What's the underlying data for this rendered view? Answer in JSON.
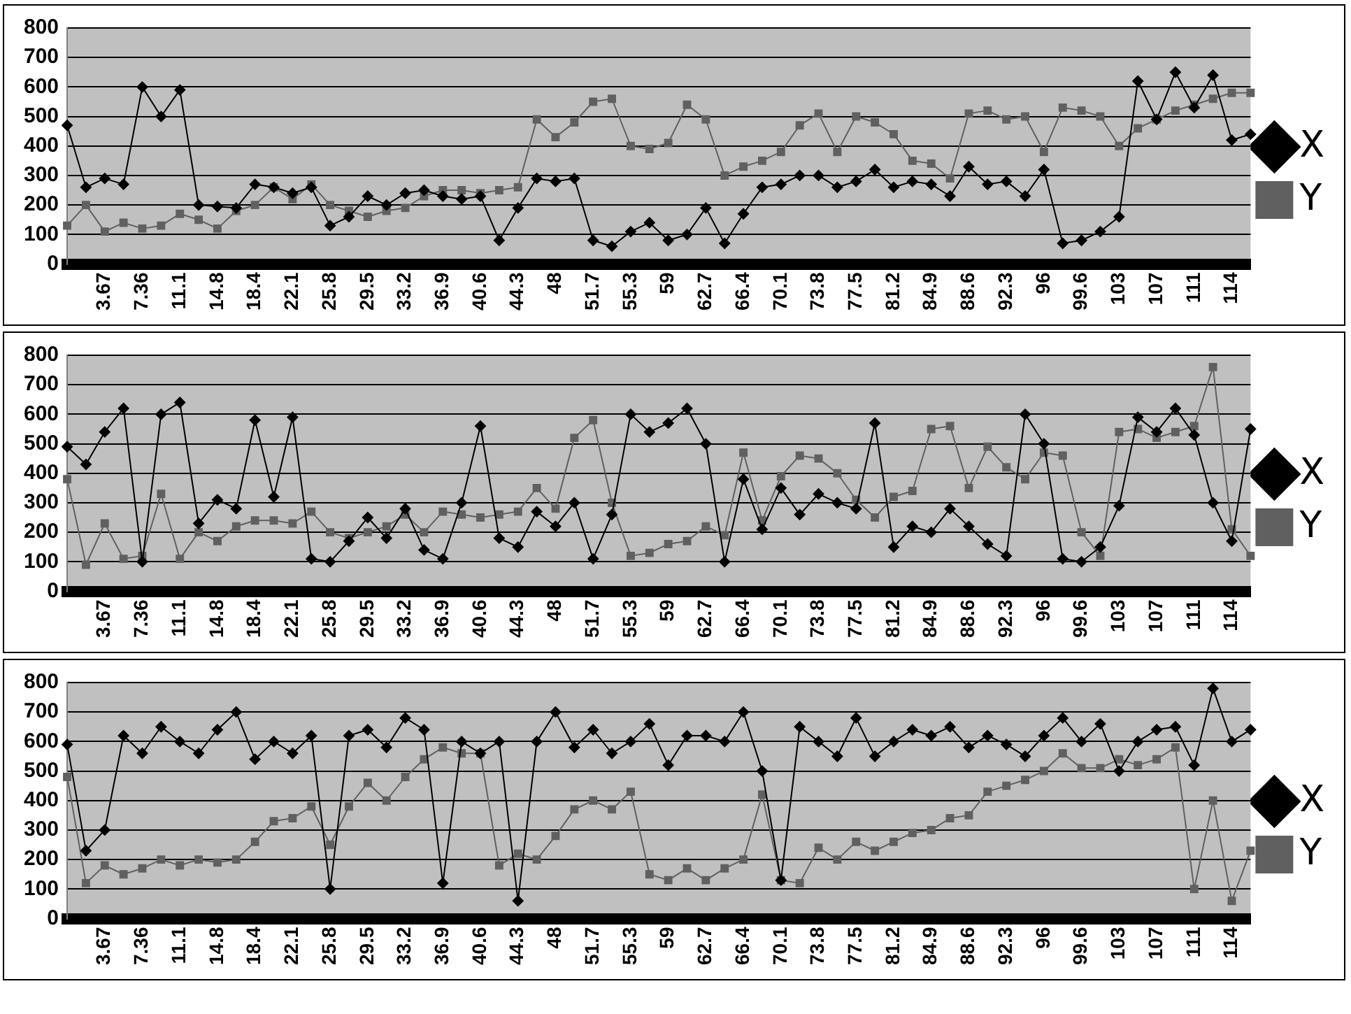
{
  "chart_data": [
    {
      "type": "line",
      "categories": [
        null,
        null,
        "3.67",
        null,
        "7.36",
        null,
        "11.1",
        null,
        "14.8",
        null,
        "18.4",
        null,
        "22.1",
        null,
        "25.8",
        null,
        "29.5",
        null,
        "33.2",
        null,
        "36.9",
        null,
        "40.6",
        null,
        "44.3",
        null,
        "48",
        null,
        "51.7",
        null,
        "55.3",
        null,
        "59",
        null,
        "62.7",
        null,
        "66.4",
        null,
        "70.1",
        null,
        "73.8",
        null,
        "77.5",
        null,
        "81.2",
        null,
        "84.9",
        null,
        "88.6",
        null,
        "92.3",
        null,
        "96",
        null,
        "99.6",
        null,
        "103",
        null,
        "107",
        null,
        "111",
        null,
        "114",
        null
      ],
      "series": [
        {
          "name": "X",
          "color": "#000000",
          "marker": "diamond",
          "values": [
            470,
            260,
            290,
            270,
            600,
            500,
            590,
            200,
            195,
            190,
            270,
            260,
            240,
            260,
            130,
            160,
            230,
            200,
            240,
            250,
            230,
            220,
            230,
            80,
            190,
            290,
            280,
            290,
            80,
            60,
            110,
            140,
            80,
            100,
            190,
            70,
            170,
            260,
            270,
            300,
            300,
            260,
            280,
            320,
            260,
            280,
            270,
            230,
            330,
            270,
            280,
            230,
            320,
            70,
            80,
            110,
            160,
            620,
            490,
            650,
            530,
            640,
            420,
            440
          ]
        },
        {
          "name": "Y",
          "color": "#606060",
          "marker": "square",
          "values": [
            130,
            200,
            110,
            140,
            120,
            130,
            170,
            150,
            120,
            180,
            200,
            260,
            220,
            270,
            200,
            180,
            160,
            180,
            190,
            230,
            250,
            250,
            240,
            250,
            260,
            490,
            430,
            480,
            550,
            560,
            400,
            390,
            410,
            540,
            490,
            300,
            330,
            350,
            380,
            470,
            510,
            380,
            500,
            480,
            440,
            350,
            340,
            290,
            510,
            520,
            490,
            500,
            380,
            530,
            520,
            500,
            400,
            460,
            490,
            520,
            540,
            560,
            580,
            580
          ]
        }
      ],
      "ylim": [
        0,
        800
      ],
      "yticks": [
        0,
        100,
        200,
        300,
        400,
        500,
        600,
        700,
        800
      ],
      "grid": "y",
      "legend": "right"
    },
    {
      "type": "line",
      "categories": [
        null,
        null,
        "3.67",
        null,
        "7.36",
        null,
        "11.1",
        null,
        "14.8",
        null,
        "18.4",
        null,
        "22.1",
        null,
        "25.8",
        null,
        "29.5",
        null,
        "33.2",
        null,
        "36.9",
        null,
        "40.6",
        null,
        "44.3",
        null,
        "48",
        null,
        "51.7",
        null,
        "55.3",
        null,
        "59",
        null,
        "62.7",
        null,
        "66.4",
        null,
        "70.1",
        null,
        "73.8",
        null,
        "77.5",
        null,
        "81.2",
        null,
        "84.9",
        null,
        "88.6",
        null,
        "92.3",
        null,
        "96",
        null,
        "99.6",
        null,
        "103",
        null,
        "107",
        null,
        "111",
        null,
        "114",
        null
      ],
      "series": [
        {
          "name": "X",
          "color": "#000000",
          "marker": "diamond",
          "values": [
            490,
            430,
            540,
            620,
            100,
            600,
            640,
            230,
            310,
            280,
            580,
            320,
            590,
            110,
            100,
            170,
            250,
            180,
            280,
            140,
            110,
            300,
            560,
            180,
            150,
            270,
            220,
            300,
            110,
            260,
            600,
            540,
            570,
            620,
            500,
            100,
            380,
            210,
            350,
            260,
            330,
            300,
            280,
            570,
            150,
            220,
            200,
            280,
            220,
            160,
            120,
            600,
            500,
            110,
            100,
            150,
            290,
            590,
            540,
            620,
            530,
            300,
            170,
            550
          ]
        },
        {
          "name": "Y",
          "color": "#606060",
          "marker": "square",
          "values": [
            380,
            90,
            230,
            110,
            120,
            330,
            110,
            200,
            170,
            220,
            240,
            240,
            230,
            270,
            200,
            180,
            200,
            220,
            260,
            200,
            270,
            260,
            250,
            260,
            270,
            350,
            280,
            520,
            580,
            300,
            120,
            130,
            160,
            170,
            220,
            190,
            470,
            240,
            390,
            460,
            450,
            400,
            310,
            250,
            320,
            340,
            550,
            560,
            350,
            490,
            420,
            380,
            470,
            460,
            200,
            120,
            540,
            550,
            520,
            540,
            560,
            760,
            210,
            120
          ]
        }
      ],
      "ylim": [
        0,
        800
      ],
      "yticks": [
        0,
        100,
        200,
        300,
        400,
        500,
        600,
        700,
        800
      ],
      "grid": "y",
      "legend": "right"
    },
    {
      "type": "line",
      "categories": [
        null,
        null,
        "3.67",
        null,
        "7.36",
        null,
        "11.1",
        null,
        "14.8",
        null,
        "18.4",
        null,
        "22.1",
        null,
        "25.8",
        null,
        "29.5",
        null,
        "33.2",
        null,
        "36.9",
        null,
        "40.6",
        null,
        "44.3",
        null,
        "48",
        null,
        "51.7",
        null,
        "55.3",
        null,
        "59",
        null,
        "62.7",
        null,
        "66.4",
        null,
        "70.1",
        null,
        "73.8",
        null,
        "77.5",
        null,
        "81.2",
        null,
        "84.9",
        null,
        "88.6",
        null,
        "92.3",
        null,
        "96",
        null,
        "99.6",
        null,
        "103",
        null,
        "107",
        null,
        "111",
        null,
        "114",
        null
      ],
      "series": [
        {
          "name": "X",
          "color": "#000000",
          "marker": "diamond",
          "values": [
            590,
            230,
            300,
            620,
            560,
            650,
            600,
            560,
            640,
            700,
            540,
            600,
            560,
            620,
            100,
            620,
            640,
            580,
            680,
            640,
            120,
            600,
            560,
            600,
            60,
            600,
            700,
            580,
            640,
            560,
            600,
            660,
            520,
            620,
            620,
            600,
            700,
            500,
            130,
            650,
            600,
            550,
            680,
            550,
            600,
            640,
            620,
            650,
            580,
            620,
            590,
            550,
            620,
            680,
            600,
            660,
            500,
            600,
            640,
            650,
            520,
            780,
            600,
            640
          ]
        },
        {
          "name": "Y",
          "color": "#606060",
          "marker": "square",
          "values": [
            480,
            120,
            180,
            150,
            170,
            200,
            180,
            200,
            190,
            200,
            260,
            330,
            340,
            380,
            250,
            380,
            460,
            400,
            480,
            540,
            580,
            560,
            560,
            180,
            220,
            200,
            280,
            370,
            400,
            370,
            430,
            150,
            130,
            170,
            130,
            170,
            200,
            420,
            130,
            120,
            240,
            200,
            260,
            230,
            260,
            290,
            300,
            340,
            350,
            430,
            450,
            470,
            500,
            560,
            510,
            510,
            540,
            520,
            540,
            580,
            100,
            400,
            60,
            230
          ]
        }
      ],
      "ylim": [
        0,
        800
      ],
      "yticks": [
        0,
        100,
        200,
        300,
        400,
        500,
        600,
        700,
        800
      ],
      "grid": "y",
      "legend": "right"
    }
  ]
}
